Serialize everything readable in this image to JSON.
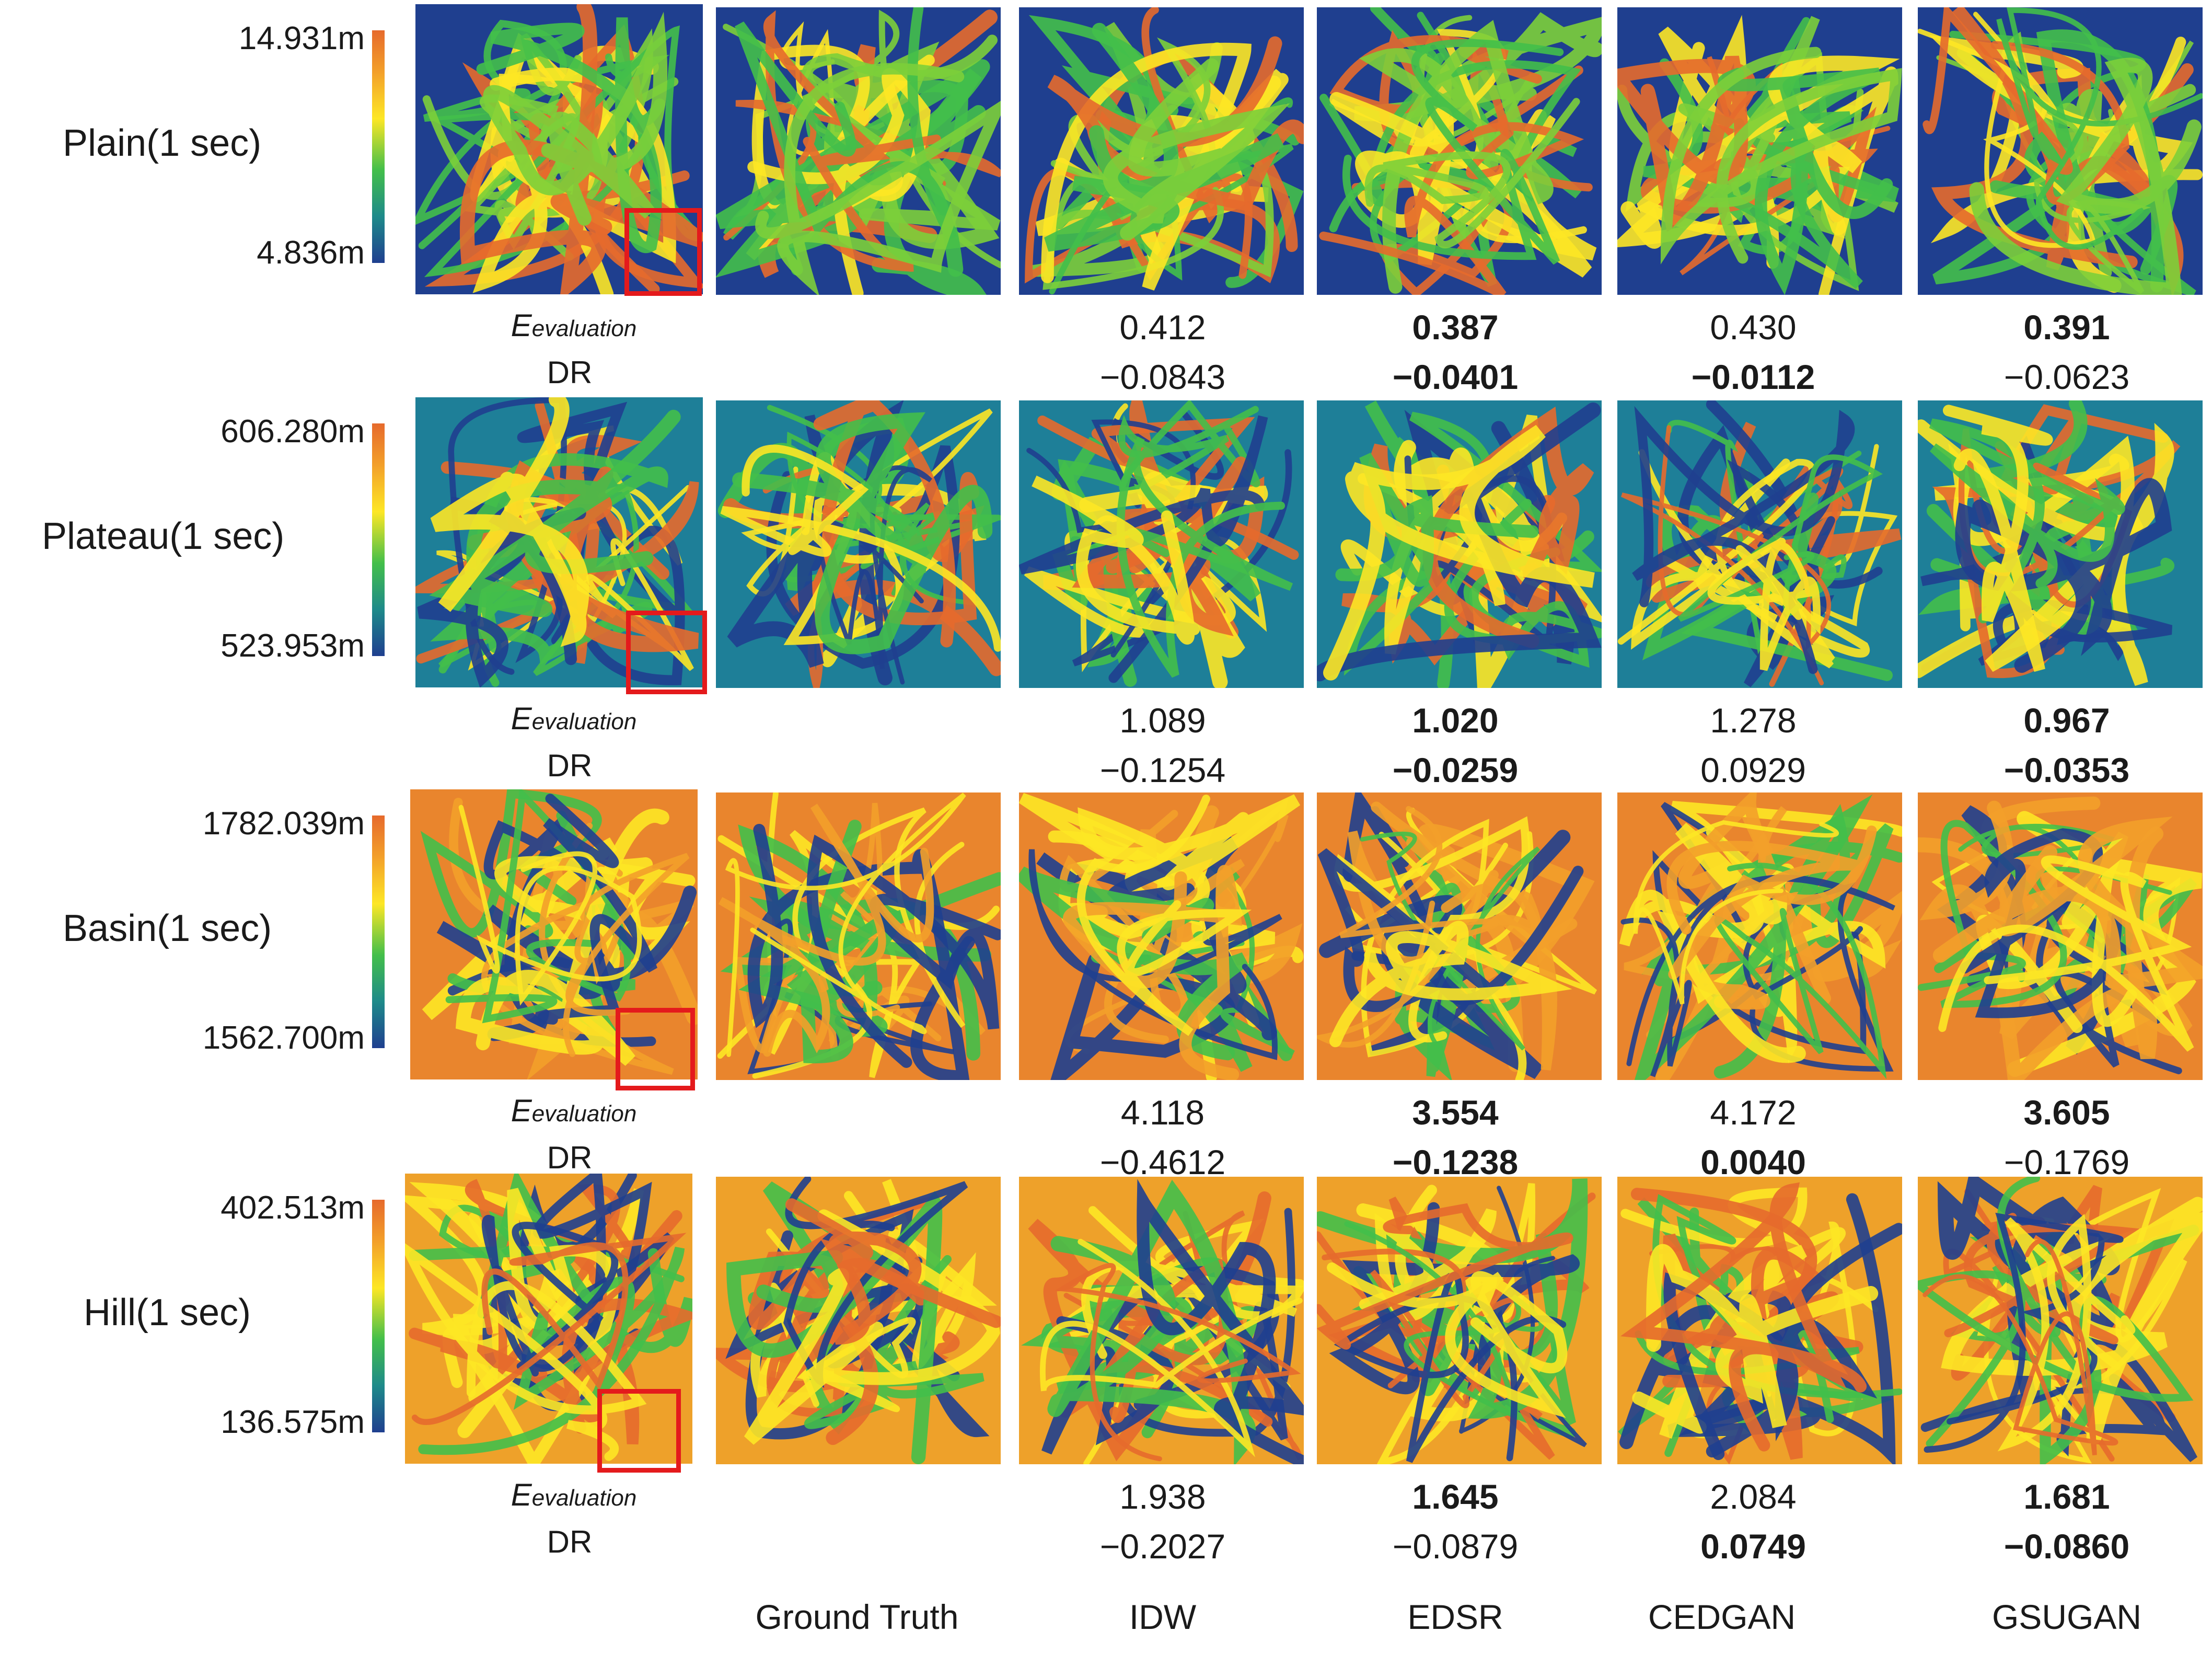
{
  "columns": [
    "Ground Truth",
    "IDW",
    "EDSR",
    "CEDGAN",
    "GSUGAN"
  ],
  "metric_labels": {
    "e_main": "E",
    "e_sub": "evaluation",
    "dr": "DR"
  },
  "rows": [
    {
      "terrain": "Plain(1 sec)",
      "scale_max": "14.931m",
      "scale_min": "4.836m",
      "e_values": [
        "0.412",
        "0.387",
        "0.430",
        "0.391"
      ],
      "e_best": [
        false,
        true,
        false,
        true
      ],
      "dr_values": [
        "−0.0843",
        "−0.0401",
        "−0.0112",
        "−0.0623"
      ],
      "dr_best": [
        false,
        true,
        true,
        false
      ]
    },
    {
      "terrain": "Plateau(1 sec)",
      "scale_max": "606.280m",
      "scale_min": "523.953m",
      "e_values": [
        "1.089",
        "1.020",
        "1.278",
        "0.967"
      ],
      "e_best": [
        false,
        true,
        false,
        true
      ],
      "dr_values": [
        "−0.1254",
        "−0.0259",
        "0.0929",
        "−0.0353"
      ],
      "dr_best": [
        false,
        true,
        false,
        true
      ]
    },
    {
      "terrain": "Basin(1 sec)",
      "scale_max": "1782.039m",
      "scale_min": "1562.700m",
      "e_values": [
        "4.118",
        "3.554",
        "4.172",
        "3.605"
      ],
      "e_best": [
        false,
        true,
        false,
        true
      ],
      "dr_values": [
        "−0.4612",
        "−0.1238",
        "0.0040",
        "−0.1769"
      ],
      "dr_best": [
        false,
        true,
        true,
        false
      ]
    },
    {
      "terrain": "Hill(1 sec)",
      "scale_max": "402.513m",
      "scale_min": "136.575m",
      "e_values": [
        "1.938",
        "1.645",
        "2.084",
        "1.681"
      ],
      "e_best": [
        false,
        true,
        false,
        true
      ],
      "dr_values": [
        "−0.2027",
        "−0.0879",
        "0.0749",
        "−0.0860"
      ],
      "dr_best": [
        false,
        false,
        true,
        true
      ]
    }
  ],
  "colors": {
    "low": "#1f3f8f",
    "mid_low": "#1e8a8a",
    "mid": "#43bf4a",
    "mid_high": "#fde725",
    "high": "#e66a2c",
    "zoom_box": "#e41a1c"
  }
}
